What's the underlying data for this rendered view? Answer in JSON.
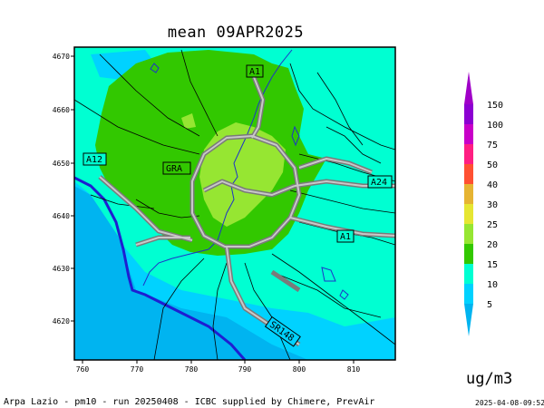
{
  "title": "mean 09APR2025",
  "x_ticks": [
    "760",
    "770",
    "780",
    "790",
    "800",
    "810"
  ],
  "y_ticks": [
    "4670",
    "4660",
    "4650",
    "4640",
    "4630",
    "4620"
  ],
  "road_labels": [
    "A1",
    "A12",
    "GRA",
    "A24",
    "A1",
    "SR148"
  ],
  "legend": {
    "levels": [
      "5",
      "10",
      "15",
      "20",
      "25",
      "30",
      "40",
      "50",
      "75",
      "100",
      "150"
    ],
    "colors": [
      "#00b4f0",
      "#00d2ff",
      "#00ffd2",
      "#32c800",
      "#96e632",
      "#e6e632",
      "#e6b432",
      "#ff5032",
      "#ff1e82",
      "#c800c8",
      "#8c00d2",
      "#a000c8"
    ]
  },
  "unit": "ug/m3",
  "footer": "Arpa Lazio - pm10 - run 20250408 - ICBC supplied by Chimere, PrevAir",
  "timestamp": "2025-04-08-09:52"
}
